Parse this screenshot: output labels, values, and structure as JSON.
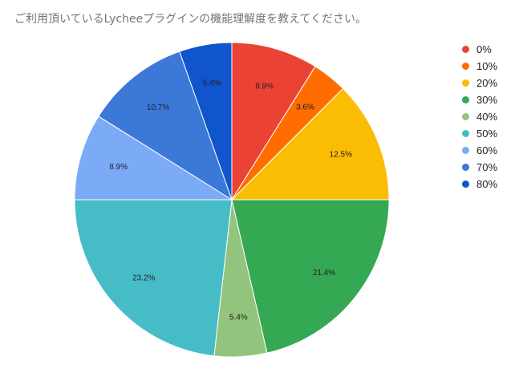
{
  "chart_data": {
    "type": "pie",
    "title": "ご利用頂いているLycheeプラグインの機能理解度を教えてください。",
    "categories": [
      "0%",
      "10%",
      "20%",
      "30%",
      "40%",
      "50%",
      "60%",
      "70%",
      "80%"
    ],
    "values": [
      8.9,
      3.6,
      12.5,
      21.4,
      5.4,
      23.2,
      8.9,
      10.7,
      5.4
    ],
    "labels": [
      "8.9%",
      "3.6%",
      "12.5%",
      "21.4%",
      "5.4%",
      "23.2%",
      "8.9%",
      "10.7%",
      "5.4%"
    ],
    "colors": [
      "#ea4335",
      "#ff6d01",
      "#fbbc04",
      "#34a853",
      "#93c47d",
      "#46bdc6",
      "#7baaf7",
      "#3c78d8",
      "#1155cc"
    ],
    "legend_position": "right"
  }
}
